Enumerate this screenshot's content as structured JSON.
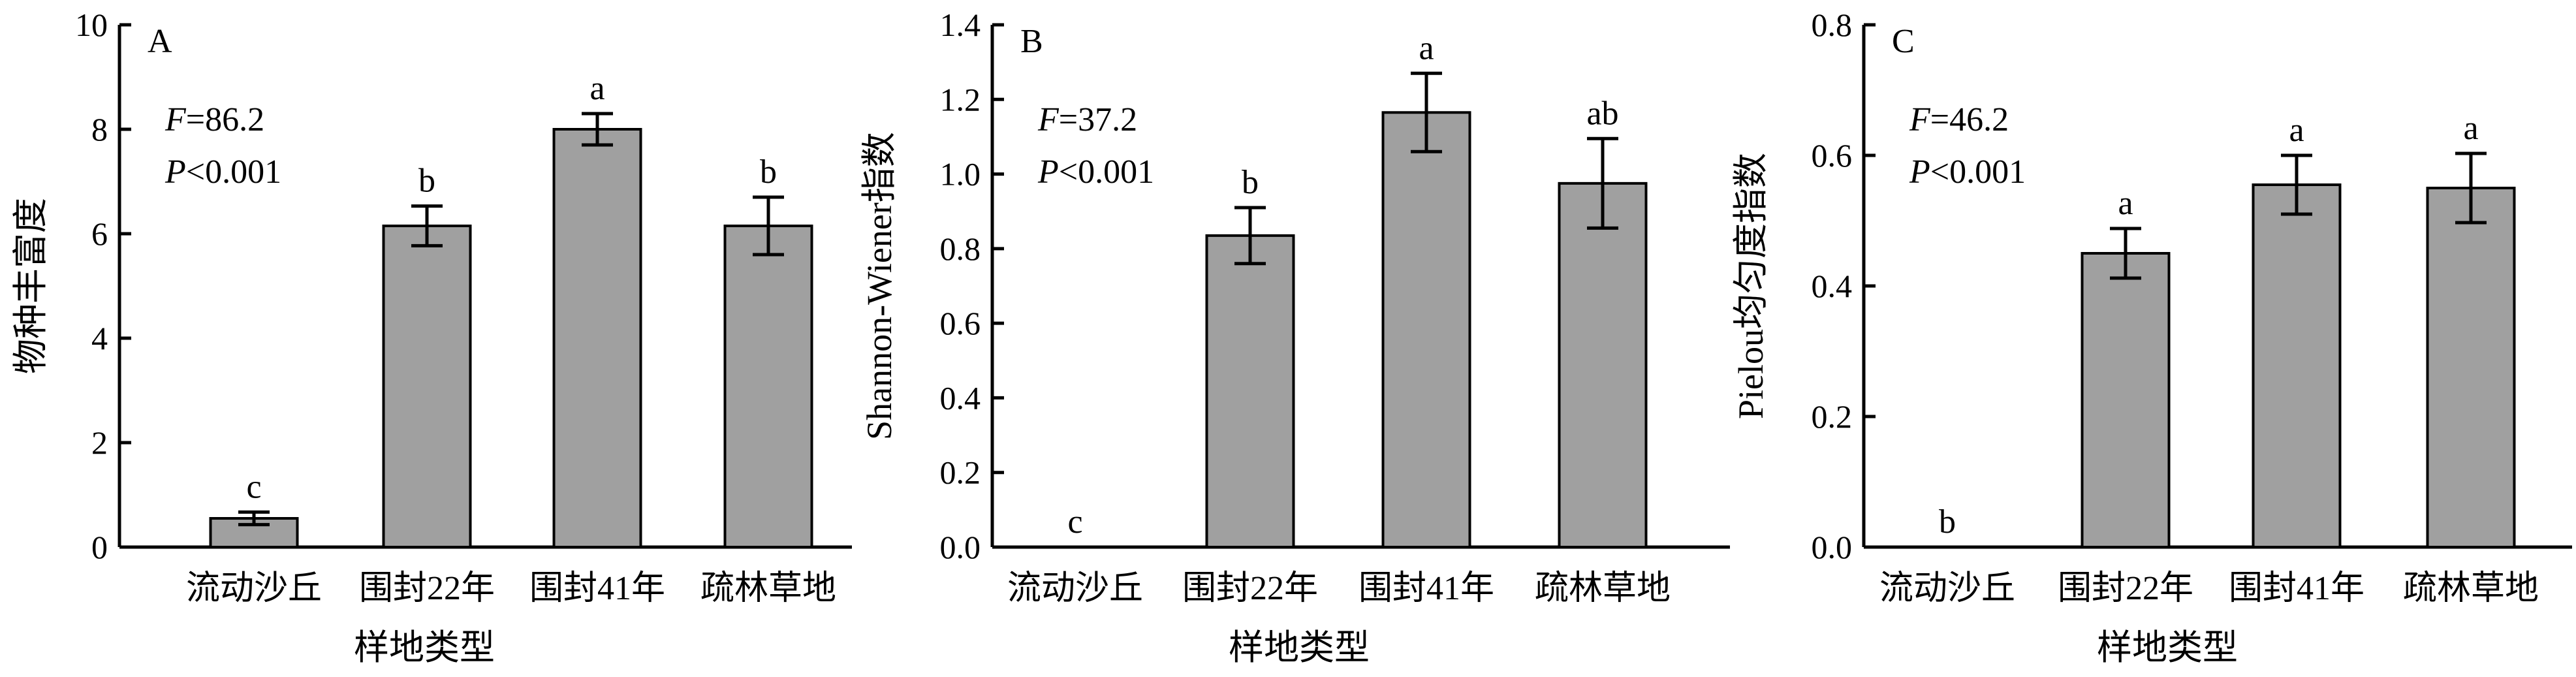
{
  "chart_data": [
    {
      "type": "bar",
      "panel_label": "A",
      "categories": [
        "流动沙丘",
        "围封22年",
        "围封41年",
        "疏林草地"
      ],
      "values": [
        0.55,
        6.15,
        8.0,
        6.15
      ],
      "errors": [
        0.12,
        0.38,
        0.3,
        0.55
      ],
      "significance": [
        "c",
        "b",
        "a",
        "b"
      ],
      "xlabel": "样地类型",
      "ylabel": "物种丰富度",
      "ylim": [
        0,
        10
      ],
      "yticks": [
        0,
        2,
        4,
        6,
        8,
        10
      ],
      "ytick_labels": [
        "0",
        "2",
        "4",
        "6",
        "8",
        "10"
      ],
      "stat_f_symbol": "F",
      "stat_f_value": "=86.2",
      "stat_p_symbol": "P",
      "stat_p_value": "<0.001"
    },
    {
      "type": "bar",
      "panel_label": "B",
      "categories": [
        "流动沙丘",
        "围封22年",
        "围封41年",
        "疏林草地"
      ],
      "values": [
        0,
        0.835,
        1.165,
        0.975
      ],
      "errors": [
        0,
        0.075,
        0.105,
        0.12
      ],
      "significance": [
        "c",
        "b",
        "a",
        "ab"
      ],
      "xlabel": "",
      "ylabel": "Shannon-Wiener指数",
      "ylim": [
        0,
        1.4
      ],
      "yticks": [
        0,
        0.2,
        0.4,
        0.6,
        0.8,
        1.0,
        1.2,
        1.4
      ],
      "ytick_labels": [
        "0.0",
        "0.2",
        "0.4",
        "0.6",
        "0.8",
        "1.0",
        "1.2",
        "1.4"
      ],
      "stat_f_symbol": "F",
      "stat_f_value": "=37.2",
      "stat_p_symbol": "P",
      "stat_p_value": "<0.001"
    },
    {
      "type": "bar",
      "panel_label": "C",
      "categories": [
        "流动沙丘",
        "围封22年",
        "围封41年",
        "疏林草地"
      ],
      "values": [
        0,
        0.45,
        0.555,
        0.55
      ],
      "errors": [
        0,
        0.038,
        0.045,
        0.053
      ],
      "significance": [
        "b",
        "a",
        "a",
        "a"
      ],
      "xlabel": "样地类型",
      "ylabel": "Pielou均匀度指数",
      "ylim": [
        0,
        0.8
      ],
      "yticks": [
        0,
        0.2,
        0.4,
        0.6,
        0.8
      ],
      "ytick_labels": [
        "0.0",
        "0.2",
        "0.4",
        "0.6",
        "0.8"
      ],
      "stat_f_symbol": "F",
      "stat_f_value": "=46.2",
      "stat_p_symbol": "P",
      "stat_p_value": "<0.001"
    }
  ]
}
